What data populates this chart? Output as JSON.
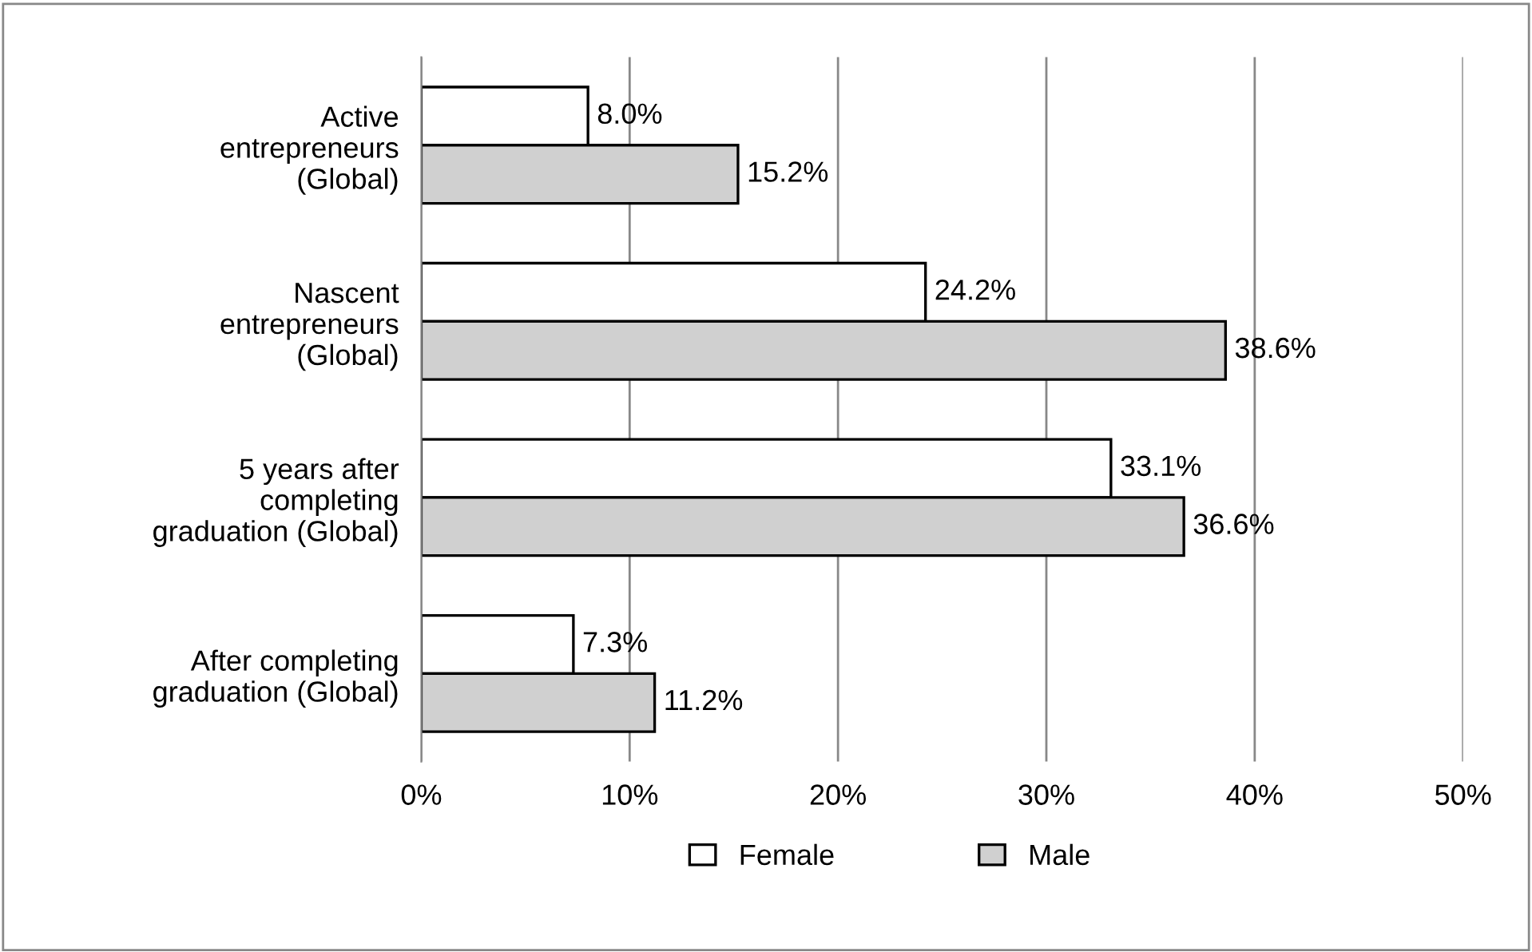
{
  "chart_data": {
    "type": "bar",
    "orientation": "horizontal",
    "categories": [
      "Active\nentrepreneurs\n(Global)",
      "Nascent\nentrepreneurs\n(Global)",
      "5 years after\ncompleting\ngraduation (Global)",
      "After completing\ngraduation (Global)"
    ],
    "series": [
      {
        "name": "Female",
        "color": "#ffffff",
        "values": [
          8.0,
          24.2,
          33.1,
          7.3
        ],
        "value_labels": [
          "8.0%",
          "24.2%",
          "33.1%",
          "7.3%"
        ]
      },
      {
        "name": "Male",
        "color": "#d0d0d0",
        "values": [
          15.2,
          38.6,
          36.6,
          11.2
        ],
        "value_labels": [
          "15.2%",
          "38.6%",
          "36.6%",
          "11.2%"
        ]
      }
    ],
    "xlim": [
      0,
      50
    ],
    "xticks": [
      {
        "value": 0,
        "label": "0%"
      },
      {
        "value": 10,
        "label": "10%"
      },
      {
        "value": 20,
        "label": "20%"
      },
      {
        "value": 30,
        "label": "30%"
      },
      {
        "value": 40,
        "label": "40%"
      },
      {
        "value": 50,
        "label": "50%"
      }
    ],
    "grid": "x",
    "legend": "bottom"
  }
}
